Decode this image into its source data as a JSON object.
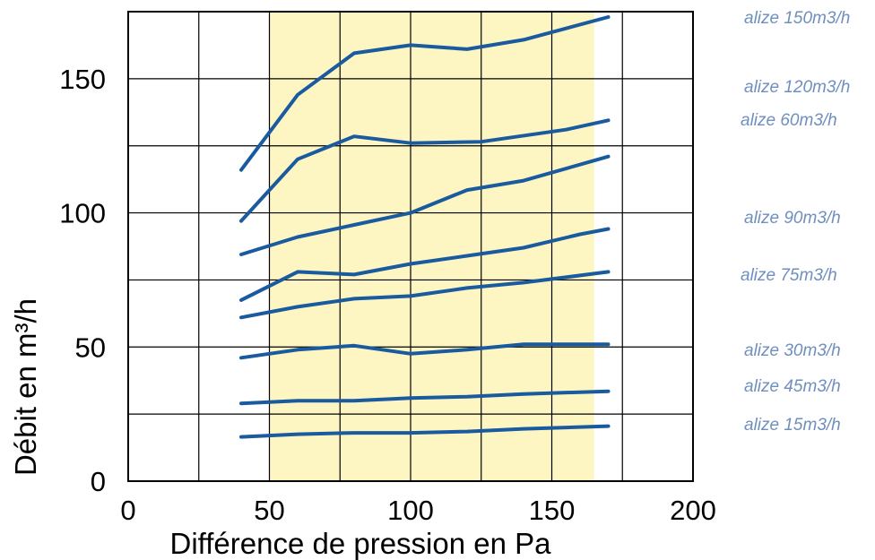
{
  "chart_data": {
    "type": "line",
    "xlabel": "Différence de pression en Pa",
    "ylabel": "Débit en m³/h",
    "xlim": [
      0,
      200
    ],
    "ylim": [
      0,
      175
    ],
    "x_ticks": [
      "0",
      "50",
      "100",
      "150",
      "200"
    ],
    "y_ticks": [
      "0",
      "50",
      "100",
      "150"
    ],
    "grid": true,
    "highlight_x_range": [
      50,
      165
    ],
    "highlight_color": "#fdf6c3",
    "line_color": "#1a5a9e",
    "label_color": "#6f8fbf",
    "series": [
      {
        "name": "alize 150m3/h",
        "x": [
          40,
          60,
          80,
          100,
          120,
          140,
          170
        ],
        "values": [
          116,
          144,
          159.5,
          162.5,
          161,
          164.5,
          173
        ]
      },
      {
        "name": "alize 120m3/h",
        "x": [
          40,
          60,
          80,
          100,
          125,
          155,
          170
        ],
        "values": [
          97,
          120,
          128.5,
          126,
          126.5,
          131,
          134.5
        ]
      },
      {
        "name": "alize 60m3/h",
        "x": [
          40,
          60,
          80,
          100,
          120,
          140,
          170
        ],
        "values": [
          84.5,
          91,
          95.5,
          100,
          108.5,
          112,
          121
        ]
      },
      {
        "name": "alize 90m3/h",
        "x": [
          40,
          60,
          80,
          100,
          120,
          140,
          160,
          170
        ],
        "values": [
          67.5,
          78,
          77,
          81,
          84,
          87,
          92,
          94
        ]
      },
      {
        "name": "alize 75m3/h",
        "x": [
          40,
          60,
          80,
          100,
          120,
          140,
          170
        ],
        "values": [
          61,
          65,
          68,
          69,
          72,
          74,
          78
        ]
      },
      {
        "name": "alize 30m3/h",
        "x": [
          40,
          60,
          80,
          100,
          120,
          140,
          170
        ],
        "values": [
          46,
          49,
          50.5,
          47.5,
          49,
          51,
          51
        ]
      },
      {
        "name": "alize 45m3/h",
        "x": [
          40,
          60,
          80,
          100,
          120,
          140,
          170
        ],
        "values": [
          29,
          30,
          30,
          31,
          31.5,
          32.5,
          33.5
        ]
      },
      {
        "name": "alize 15m3/h",
        "x": [
          40,
          60,
          80,
          100,
          120,
          140,
          170
        ],
        "values": [
          16.5,
          17.5,
          18,
          18,
          18.5,
          19.5,
          20.5
        ]
      }
    ]
  }
}
